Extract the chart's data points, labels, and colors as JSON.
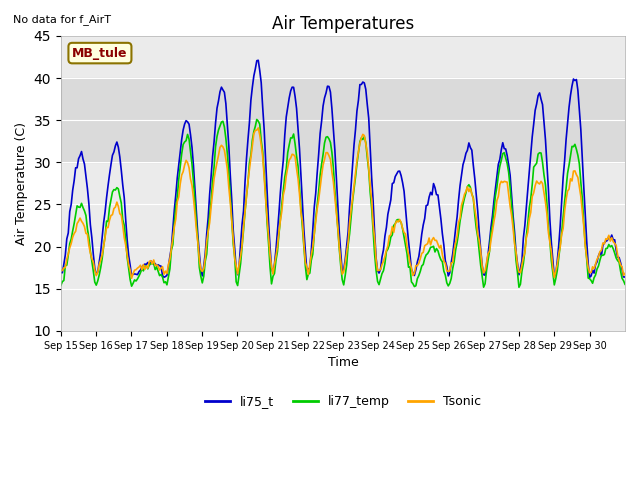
{
  "title": "Air Temperatures",
  "xlabel": "Time",
  "ylabel": "Air Temperature (C)",
  "note": "No data for f_AirT",
  "annotation": "MB_tule",
  "ylim": [
    10,
    45
  ],
  "yticks": [
    10,
    15,
    20,
    25,
    30,
    35,
    40,
    45
  ],
  "colors": {
    "li75_t": "#0000cc",
    "li77_temp": "#00cc00",
    "Tsonic": "#ffa500"
  },
  "plot_bg": "#ebebeb",
  "x_labels": [
    "Sep 15",
    "Sep 16",
    "Sep 17",
    "Sep 18",
    "Sep 19",
    "Sep 20",
    "Sep 21",
    "Sep 22",
    "Sep 23",
    "Sep 24",
    "Sep 25",
    "Sep 26",
    "Sep 27",
    "Sep 28",
    "Sep 29",
    "Sep 30"
  ],
  "li75_peaks": [
    31,
    32,
    18,
    35,
    39,
    42,
    39,
    39,
    40,
    29,
    27,
    32,
    32,
    38,
    40,
    21
  ],
  "li77_peaks": [
    25,
    27,
    18,
    33,
    35,
    35,
    33,
    33,
    33,
    23,
    20,
    27,
    31,
    31,
    32,
    20
  ],
  "tsonic_peaks": [
    23,
    25,
    18,
    30,
    32,
    34,
    31,
    31,
    33,
    23,
    21,
    27,
    28,
    28,
    29,
    21
  ],
  "li75_night": 16.5,
  "li77_night": 15.5,
  "tsonic_night": 16.8,
  "n_days": 16,
  "n_pts_per_day": 24
}
